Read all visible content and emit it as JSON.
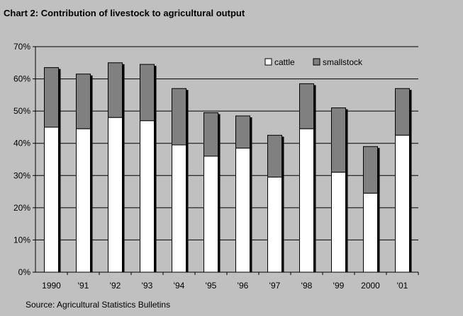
{
  "title": "Chart 2: Contribution of livestock to agricultural output",
  "source": "Source: Agricultural Statistics Bulletins",
  "colors": {
    "cattle": "#ffffff",
    "smallstock": "#808080",
    "background": "#c0c0c0",
    "shadow": "#000000"
  },
  "chart_data": {
    "type": "bar",
    "stacked": true,
    "categories": [
      "1990",
      "'91",
      "'92",
      "'93",
      "'94",
      "'95",
      "'96",
      "'97",
      "'98",
      "'99",
      "2000",
      "'01"
    ],
    "series": [
      {
        "name": "cattle",
        "values": [
          45,
          44.5,
          48,
          47,
          39.5,
          36,
          38.5,
          29.5,
          44.5,
          31,
          24.5,
          42.5
        ]
      },
      {
        "name": "smallstock",
        "values": [
          18.5,
          17,
          17,
          17.5,
          17.5,
          13.5,
          10,
          13,
          14,
          20,
          14.5,
          14.5
        ]
      }
    ],
    "ylim": [
      0,
      70
    ],
    "yticks": [
      "0%",
      "10%",
      "20%",
      "30%",
      "40%",
      "50%",
      "60%",
      "70%"
    ],
    "grid": true,
    "legend_position": "top-right",
    "xlabel": "",
    "ylabel": ""
  }
}
